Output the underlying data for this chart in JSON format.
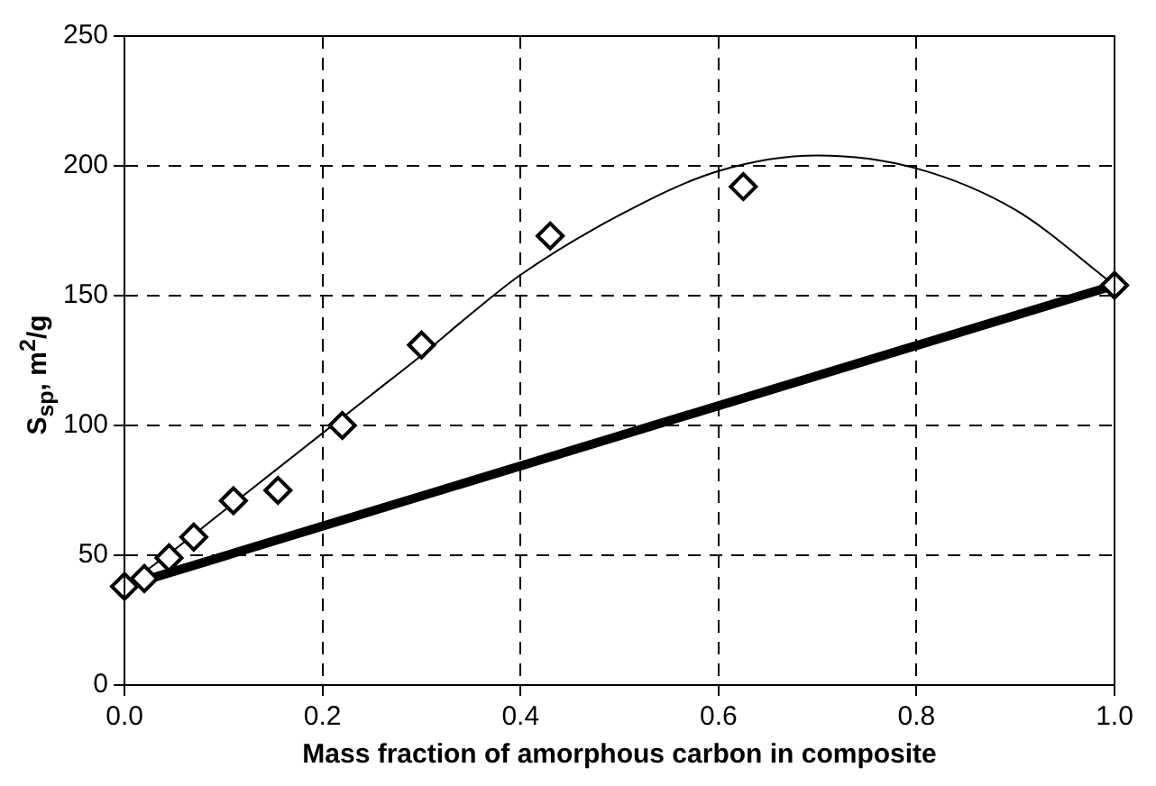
{
  "chart_data": {
    "type": "scatter",
    "xlabel": "Mass fraction of amorphous carbon in composite",
    "ylabel": "S$_{sp}$, m$^{2}$/g",
    "series": [
      {
        "type": "scatter",
        "color": "#000000",
        "marker": "diamond",
        "x": [
          0,
          0.02,
          0.045,
          0.07,
          0.11,
          0.155,
          0.22,
          0.3,
          0.43,
          0.625,
          1.0
        ],
        "values": [
          38,
          41,
          49,
          57,
          71,
          75,
          100,
          131,
          173,
          192,
          154
        ]
      },
      {
        "type": "line",
        "color": "#000000",
        "marker": "none",
        "x": [
          0,
          0.05,
          0.1,
          0.15,
          0.2,
          0.25,
          0.3,
          0.35,
          0.4,
          0.5,
          0.6,
          0.7,
          0.8,
          0.9,
          1.0
        ],
        "values": [
          38,
          52,
          67,
          82,
          97,
          112,
          127,
          143,
          158,
          181,
          198,
          204,
          199,
          183,
          154
        ]
      },
      {
        "type": "line",
        "color": "#000000",
        "marker": "none",
        "x": [
          0,
          1
        ],
        "values": [
          38,
          154
        ]
      }
    ],
    "xlim": [
      0,
      1
    ],
    "xticks": [
      {
        "value": 0,
        "label": "0.0"
      },
      {
        "value": 0.2,
        "label": "0.2"
      },
      {
        "value": 0.4,
        "label": "0.4"
      },
      {
        "value": 0.6,
        "label": "0.6"
      },
      {
        "value": 0.8,
        "label": "0.8"
      },
      {
        "value": 1,
        "label": "1.0"
      }
    ],
    "ylim": [
      0,
      250
    ],
    "yticks": [
      0,
      50,
      100,
      150,
      200,
      250
    ],
    "grid": true,
    "legend": false,
    "line_style": "solid"
  }
}
